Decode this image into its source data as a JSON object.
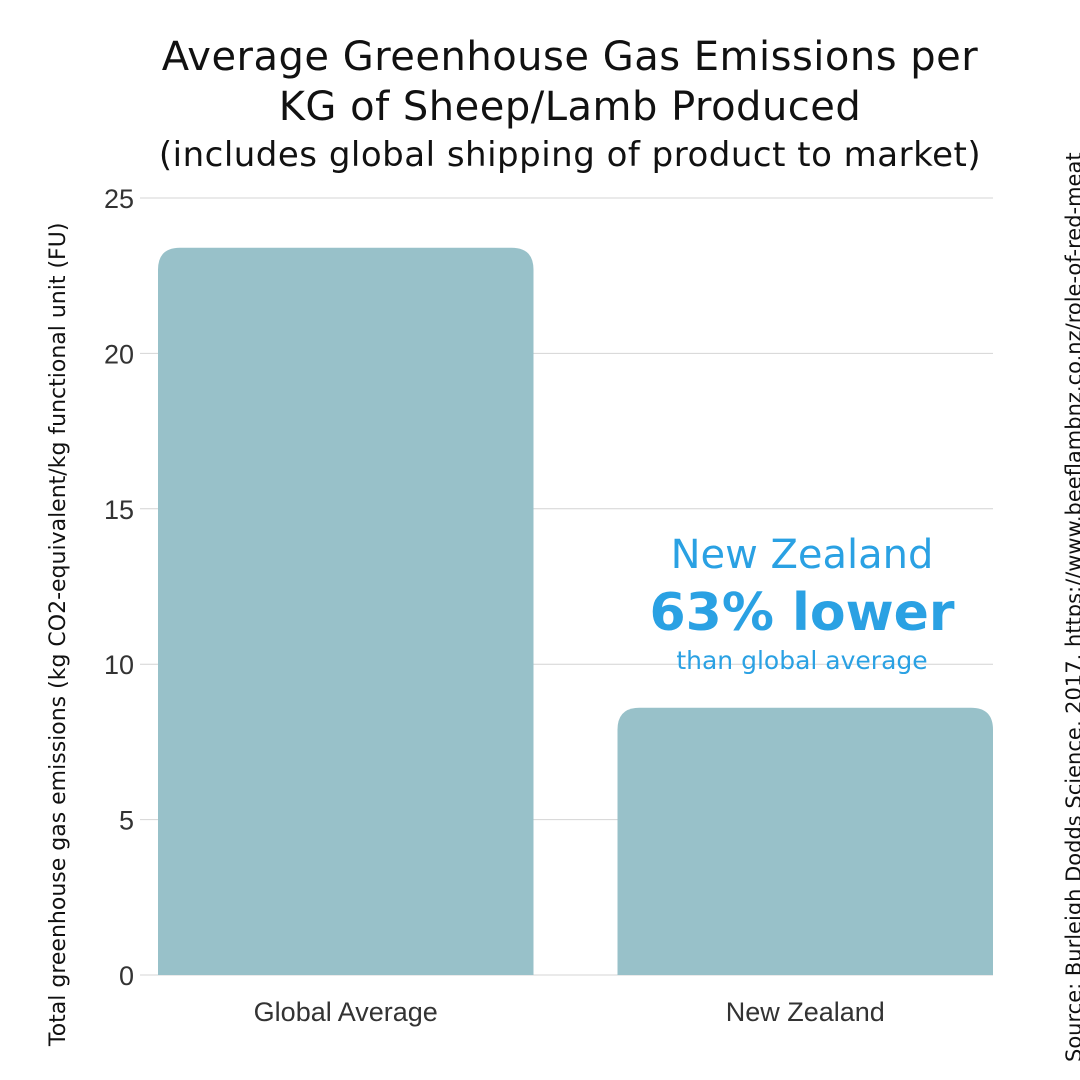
{
  "chart_data": {
    "type": "bar",
    "title": "Average Greenhouse Gas Emissions per",
    "title_line2": "KG of Sheep/Lamb Produced",
    "subtitle": "(includes global shipping of product to market)",
    "ylabel": "Total greenhouse gas emissions (kg CO2-equivalent/kg functional unit (FU)",
    "xlabel": "",
    "categories": [
      "Global Average",
      "New Zealand"
    ],
    "values": [
      23.4,
      8.6
    ],
    "ylim": [
      0,
      25
    ],
    "yticks": [
      0,
      5,
      10,
      15,
      20,
      25
    ],
    "grid": true,
    "bar_color": "#98c1c9",
    "annotation": {
      "line1": "New Zealand",
      "line2": "63% lower",
      "line3": "than global average",
      "color": "#2aa1e3"
    },
    "source": "Source: Burleigh Dodds Science, 2017. https://www.beeflambnz.co.nz/role-of-red-meat"
  }
}
